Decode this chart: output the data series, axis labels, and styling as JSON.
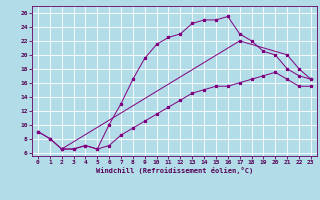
{
  "xlabel": "Windchill (Refroidissement éolien,°C)",
  "background_color": "#b2dde8",
  "grid_color": "#ffffff",
  "line_color": "#800080",
  "xlim": [
    -0.5,
    23.5
  ],
  "ylim": [
    5.5,
    27
  ],
  "xticks": [
    0,
    1,
    2,
    3,
    4,
    5,
    6,
    7,
    8,
    9,
    10,
    11,
    12,
    13,
    14,
    15,
    16,
    17,
    18,
    19,
    20,
    21,
    22,
    23
  ],
  "yticks": [
    6,
    8,
    10,
    12,
    14,
    16,
    18,
    20,
    22,
    24,
    26
  ],
  "curve1_x": [
    0,
    1,
    2,
    3,
    4,
    5,
    6,
    7,
    8,
    9,
    10,
    11,
    12,
    13,
    14,
    15,
    16,
    17,
    18,
    19,
    20,
    21,
    22,
    23
  ],
  "curve1_y": [
    9.0,
    8.0,
    6.5,
    6.5,
    7.0,
    6.5,
    7.0,
    8.5,
    9.5,
    10.5,
    11.5,
    12.5,
    13.5,
    14.5,
    15.0,
    15.5,
    15.5,
    16.0,
    16.5,
    17.0,
    17.5,
    16.5,
    15.5,
    15.5
  ],
  "curve2_x": [
    0,
    1,
    2,
    3,
    4,
    5,
    6,
    7,
    8,
    9,
    10,
    11,
    12,
    13,
    14,
    15,
    16,
    17,
    18,
    19,
    20,
    21,
    22,
    23
  ],
  "curve2_y": [
    9.0,
    8.0,
    6.5,
    6.5,
    7.0,
    6.5,
    10.0,
    13.0,
    16.5,
    19.5,
    21.5,
    22.5,
    23.0,
    24.5,
    25.0,
    25.0,
    25.5,
    23.0,
    22.0,
    20.5,
    20.0,
    18.0,
    17.0,
    16.5
  ],
  "curve3_x": [
    2,
    17,
    21,
    22,
    23
  ],
  "curve3_y": [
    6.5,
    22.0,
    20.0,
    18.0,
    16.5
  ]
}
